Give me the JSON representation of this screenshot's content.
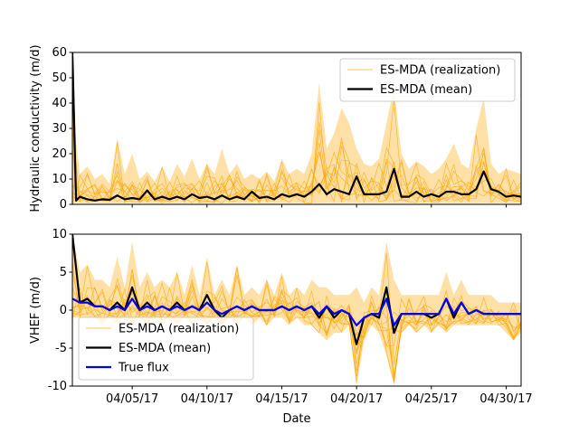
{
  "chart_data": [
    {
      "type": "line",
      "title": "",
      "xlabel": "",
      "ylabel": "Hydraulic conductivity (m/d)",
      "xlim": [
        "2017-04-01",
        "2017-05-01"
      ],
      "ylim": [
        0,
        60
      ],
      "yticks": [
        0,
        10,
        20,
        30,
        40,
        50,
        60
      ],
      "xticks": [
        "2017-04-05",
        "2017-04-10",
        "2017-04-15",
        "2017-04-20",
        "2017-04-25",
        "2017-04-30"
      ],
      "xtick_labels_visible": false,
      "grid": false,
      "legend": {
        "placement": "upper right",
        "entries": [
          "ES-MDA (realization)",
          "ES-MDA (mean)"
        ]
      },
      "colors": {
        "realization": "#ffa500",
        "mean": "#000000"
      },
      "series": [
        {
          "name": "ES-MDA (realization)",
          "kind": "ensemble band (many thin realizations)",
          "x": [
            "2017-04-01",
            "2017-04-01T06",
            "2017-04-01T12",
            "2017-04-02",
            "2017-04-02T12",
            "2017-04-03",
            "2017-04-03T12",
            "2017-04-04",
            "2017-04-04T12",
            "2017-04-05",
            "2017-04-05T12",
            "2017-04-06",
            "2017-04-06T12",
            "2017-04-07",
            "2017-04-07T12",
            "2017-04-08",
            "2017-04-08T12",
            "2017-04-09",
            "2017-04-09T12",
            "2017-04-10",
            "2017-04-10T12",
            "2017-04-11",
            "2017-04-11T12",
            "2017-04-12",
            "2017-04-12T12",
            "2017-04-13",
            "2017-04-13T12",
            "2017-04-14",
            "2017-04-14T12",
            "2017-04-15",
            "2017-04-15T12",
            "2017-04-16",
            "2017-04-16T12",
            "2017-04-17",
            "2017-04-17T12",
            "2017-04-18",
            "2017-04-18T12",
            "2017-04-19",
            "2017-04-19T12",
            "2017-04-20",
            "2017-04-20T12",
            "2017-04-21",
            "2017-04-21T12",
            "2017-04-22",
            "2017-04-22T12",
            "2017-04-23",
            "2017-04-23T12",
            "2017-04-24",
            "2017-04-24T12",
            "2017-04-25",
            "2017-04-25T12",
            "2017-04-26",
            "2017-04-26T12",
            "2017-04-27",
            "2017-04-27T12",
            "2017-04-28",
            "2017-04-28T12",
            "2017-04-29",
            "2017-04-29T12",
            "2017-04-30",
            "2017-04-30T12",
            "2017-05-01"
          ],
          "upper": [
            60,
            25,
            12,
            15,
            10,
            12,
            8,
            26,
            12,
            20,
            10,
            13,
            9,
            15,
            9,
            16,
            11,
            18,
            10,
            16,
            12,
            22,
            12,
            16,
            10,
            12,
            10,
            13,
            9,
            18,
            12,
            14,
            12,
            20,
            48,
            22,
            28,
            38,
            32,
            22,
            16,
            15,
            18,
            32,
            46,
            20,
            14,
            17,
            15,
            12,
            14,
            18,
            24,
            16,
            14,
            30,
            42,
            16,
            12,
            14,
            13,
            12
          ],
          "lower": [
            0,
            0.5,
            0.5,
            0.5,
            0.5,
            0.5,
            0.5,
            0.5,
            0.5,
            0.5,
            0.5,
            0.5,
            0.5,
            0.5,
            0.5,
            0.5,
            0.5,
            0.5,
            0.5,
            0.5,
            0.5,
            0.5,
            0.5,
            0.5,
            0.5,
            0.5,
            0.5,
            0.5,
            0.5,
            0.5,
            0.5,
            0.5,
            0.5,
            0.5,
            0.5,
            0.5,
            0.5,
            0.5,
            0.5,
            0.5,
            0.5,
            0.5,
            0.5,
            0.5,
            0.5,
            0.5,
            0.5,
            0.5,
            0.5,
            0.5,
            0.5,
            0.5,
            0.5,
            0.5,
            0.5,
            0.5,
            0.5,
            0.5,
            0.5,
            0.5,
            0.5,
            0.5
          ]
        },
        {
          "name": "ES-MDA (mean)",
          "x": [
            "2017-04-01",
            "2017-04-01T06",
            "2017-04-01T12",
            "2017-04-02",
            "2017-04-02T12",
            "2017-04-03",
            "2017-04-03T12",
            "2017-04-04",
            "2017-04-04T12",
            "2017-04-05",
            "2017-04-05T12",
            "2017-04-06",
            "2017-04-06T12",
            "2017-04-07",
            "2017-04-07T12",
            "2017-04-08",
            "2017-04-08T12",
            "2017-04-09",
            "2017-04-09T12",
            "2017-04-10",
            "2017-04-10T12",
            "2017-04-11",
            "2017-04-11T12",
            "2017-04-12",
            "2017-04-12T12",
            "2017-04-13",
            "2017-04-13T12",
            "2017-04-14",
            "2017-04-14T12",
            "2017-04-15",
            "2017-04-15T12",
            "2017-04-16",
            "2017-04-16T12",
            "2017-04-17",
            "2017-04-17T12",
            "2017-04-18",
            "2017-04-18T12",
            "2017-04-19",
            "2017-04-19T12",
            "2017-04-20",
            "2017-04-20T12",
            "2017-04-21",
            "2017-04-21T12",
            "2017-04-22",
            "2017-04-22T12",
            "2017-04-23",
            "2017-04-23T12",
            "2017-04-24",
            "2017-04-24T12",
            "2017-04-25",
            "2017-04-25T12",
            "2017-04-26",
            "2017-04-26T12",
            "2017-04-27",
            "2017-04-27T12",
            "2017-04-28",
            "2017-04-28T12",
            "2017-04-29",
            "2017-04-29T12",
            "2017-04-30",
            "2017-04-30T12",
            "2017-05-01"
          ],
          "values": [
            60,
            1.5,
            3,
            2,
            1.5,
            2,
            1.8,
            3.5,
            2,
            2.5,
            2,
            5.5,
            2,
            3,
            2,
            3,
            2,
            4,
            2.5,
            3,
            2,
            3.5,
            2,
            3,
            2,
            5,
            2.5,
            3,
            2,
            4,
            3,
            4,
            3,
            5,
            8,
            4,
            6,
            5,
            4,
            11,
            4,
            4,
            4,
            5,
            14,
            3,
            3,
            5,
            3,
            4,
            3,
            5,
            5,
            4,
            4,
            6,
            13,
            6,
            5,
            3,
            3.5,
            3
          ]
        }
      ]
    },
    {
      "type": "line",
      "title": "",
      "xlabel": "Date",
      "ylabel": "VHEF (m/d)",
      "xlim": [
        "2017-04-01",
        "2017-05-01"
      ],
      "ylim": [
        -10,
        10
      ],
      "yticks": [
        -10,
        -5,
        0,
        5,
        10
      ],
      "xticks": [
        "2017-04-05",
        "2017-04-10",
        "2017-04-15",
        "2017-04-20",
        "2017-04-25",
        "2017-04-30"
      ],
      "xtick_labels": [
        "04/05/17",
        "04/10/17",
        "04/15/17",
        "04/20/17",
        "04/25/17",
        "04/30/17"
      ],
      "grid": false,
      "legend": {
        "placement": "lower left",
        "entries": [
          "ES-MDA (realization)",
          "ES-MDA (mean)",
          "True flux"
        ]
      },
      "colors": {
        "realization": "#ffa500",
        "mean": "#000000",
        "true": "#0000ff"
      },
      "series": [
        {
          "name": "ES-MDA (realization)",
          "kind": "ensemble band (many thin realizations)",
          "x": [
            "2017-04-01",
            "2017-04-01T12",
            "2017-04-02",
            "2017-04-02T12",
            "2017-04-03",
            "2017-04-03T12",
            "2017-04-04",
            "2017-04-04T12",
            "2017-04-05",
            "2017-04-05T12",
            "2017-04-06",
            "2017-04-06T12",
            "2017-04-07",
            "2017-04-07T12",
            "2017-04-08",
            "2017-04-08T12",
            "2017-04-09",
            "2017-04-09T12",
            "2017-04-10",
            "2017-04-10T12",
            "2017-04-11",
            "2017-04-11T12",
            "2017-04-12",
            "2017-04-12T12",
            "2017-04-13",
            "2017-04-13T12",
            "2017-04-14",
            "2017-04-14T12",
            "2017-04-15",
            "2017-04-15T12",
            "2017-04-16",
            "2017-04-16T12",
            "2017-04-17",
            "2017-04-17T12",
            "2017-04-18",
            "2017-04-18T12",
            "2017-04-19",
            "2017-04-19T12",
            "2017-04-20",
            "2017-04-20T12",
            "2017-04-21",
            "2017-04-21T12",
            "2017-04-22",
            "2017-04-22T12",
            "2017-04-23",
            "2017-04-23T12",
            "2017-04-24",
            "2017-04-24T12",
            "2017-04-25",
            "2017-04-25T12",
            "2017-04-26",
            "2017-04-26T12",
            "2017-04-27",
            "2017-04-27T12",
            "2017-04-28",
            "2017-04-28T12",
            "2017-04-29",
            "2017-04-29T12",
            "2017-04-30",
            "2017-04-30T12",
            "2017-05-01"
          ],
          "upper": [
            10,
            5,
            6,
            4,
            4,
            3,
            7,
            3,
            9,
            3,
            5,
            3,
            4,
            3,
            5,
            2,
            6,
            2,
            7,
            2,
            4,
            2,
            6,
            2,
            3,
            2,
            4,
            2,
            5,
            2,
            3,
            2,
            4,
            3,
            3,
            2,
            2,
            2,
            3,
            1,
            3,
            2,
            9,
            4,
            2,
            2,
            2,
            2,
            2,
            2,
            5,
            2,
            4,
            2,
            2,
            2,
            2,
            1,
            1,
            1,
            1
          ],
          "lower": [
            -1,
            -1,
            -1,
            -1,
            -2,
            -1,
            -2,
            -1,
            -2,
            -1,
            -2,
            -1,
            -2,
            -1,
            -2,
            -1,
            -2,
            -1,
            -2,
            -1,
            -2,
            -1,
            -2,
            -1,
            -2,
            -1,
            -2,
            -1,
            -1,
            -2,
            -1,
            -2,
            -2,
            -3,
            -4,
            -3,
            -3,
            -2,
            -10,
            -4,
            -2,
            -3,
            -6,
            -10,
            -3,
            -2,
            -3,
            -2,
            -3,
            -2,
            -3,
            -2,
            -2,
            -2,
            -2,
            -2,
            -2,
            -2,
            -3,
            -4,
            -3
          ]
        },
        {
          "name": "ES-MDA (mean)",
          "x": [
            "2017-04-01",
            "2017-04-01T12",
            "2017-04-02",
            "2017-04-02T12",
            "2017-04-03",
            "2017-04-03T12",
            "2017-04-04",
            "2017-04-04T12",
            "2017-04-05",
            "2017-04-05T12",
            "2017-04-06",
            "2017-04-06T12",
            "2017-04-07",
            "2017-04-07T12",
            "2017-04-08",
            "2017-04-08T12",
            "2017-04-09",
            "2017-04-09T12",
            "2017-04-10",
            "2017-04-10T12",
            "2017-04-11",
            "2017-04-11T12",
            "2017-04-12",
            "2017-04-12T12",
            "2017-04-13",
            "2017-04-13T12",
            "2017-04-14",
            "2017-04-14T12",
            "2017-04-15",
            "2017-04-15T12",
            "2017-04-16",
            "2017-04-16T12",
            "2017-04-17",
            "2017-04-17T12",
            "2017-04-18",
            "2017-04-18T12",
            "2017-04-19",
            "2017-04-19T12",
            "2017-04-20",
            "2017-04-20T12",
            "2017-04-21",
            "2017-04-21T12",
            "2017-04-22",
            "2017-04-22T12",
            "2017-04-23",
            "2017-04-23T12",
            "2017-04-24",
            "2017-04-24T12",
            "2017-04-25",
            "2017-04-25T12",
            "2017-04-26",
            "2017-04-26T12",
            "2017-04-27",
            "2017-04-27T12",
            "2017-04-28",
            "2017-04-28T12",
            "2017-04-29",
            "2017-04-29T12",
            "2017-04-30",
            "2017-04-30T12",
            "2017-05-01"
          ],
          "values": [
            10,
            1,
            1.5,
            0.5,
            0.5,
            0,
            1,
            0,
            3,
            0,
            1,
            0,
            0.5,
            0,
            1,
            0,
            0.5,
            0,
            2,
            0,
            -1,
            0,
            0.5,
            0,
            0.5,
            0,
            0,
            0,
            0.5,
            0,
            0.5,
            0,
            0.5,
            -1,
            0.5,
            -1,
            0,
            -0.5,
            -4.5,
            -1,
            -0.5,
            -1,
            3,
            -3,
            -0.5,
            -0.5,
            -0.5,
            -0.5,
            -1,
            -0.5,
            1.5,
            -1,
            1,
            -0.5,
            0,
            -0.5,
            -0.5,
            -0.5,
            -0.5,
            -0.5,
            -0.5
          ]
        },
        {
          "name": "True flux",
          "x": [
            "2017-04-01",
            "2017-04-01T12",
            "2017-04-02",
            "2017-04-02T12",
            "2017-04-03",
            "2017-04-03T12",
            "2017-04-04",
            "2017-04-04T12",
            "2017-04-05",
            "2017-04-05T12",
            "2017-04-06",
            "2017-04-06T12",
            "2017-04-07",
            "2017-04-07T12",
            "2017-04-08",
            "2017-04-08T12",
            "2017-04-09",
            "2017-04-09T12",
            "2017-04-10",
            "2017-04-10T12",
            "2017-04-11",
            "2017-04-11T12",
            "2017-04-12",
            "2017-04-12T12",
            "2017-04-13",
            "2017-04-13T12",
            "2017-04-14",
            "2017-04-14T12",
            "2017-04-15",
            "2017-04-15T12",
            "2017-04-16",
            "2017-04-16T12",
            "2017-04-17",
            "2017-04-17T12",
            "2017-04-18",
            "2017-04-18T12",
            "2017-04-19",
            "2017-04-19T12",
            "2017-04-20",
            "2017-04-20T12",
            "2017-04-21",
            "2017-04-21T12",
            "2017-04-22",
            "2017-04-22T12",
            "2017-04-23",
            "2017-04-23T12",
            "2017-04-24",
            "2017-04-24T12",
            "2017-04-25",
            "2017-04-25T12",
            "2017-04-26",
            "2017-04-26T12",
            "2017-04-27",
            "2017-04-27T12",
            "2017-04-28",
            "2017-04-28T12",
            "2017-04-29",
            "2017-04-29T12",
            "2017-04-30",
            "2017-04-30T12",
            "2017-05-01"
          ],
          "values": [
            1.5,
            1,
            1,
            0.5,
            0.5,
            0,
            0.5,
            0,
            1.5,
            0,
            0.5,
            0,
            0.5,
            0,
            0.5,
            0,
            0.5,
            0,
            1,
            0,
            -0.5,
            0,
            0.5,
            0,
            0.5,
            0,
            0,
            0,
            0.5,
            0,
            0.5,
            0,
            0.5,
            -0.5,
            0.5,
            -0.5,
            0,
            -0.5,
            -2,
            -1,
            -0.5,
            -0.5,
            1.5,
            -2,
            -0.5,
            -0.5,
            -0.5,
            -0.5,
            -0.5,
            -0.5,
            1.5,
            -0.5,
            1,
            -0.5,
            0,
            -0.5,
            -0.5,
            -0.5,
            -0.5,
            -0.5,
            -0.5
          ]
        }
      ]
    }
  ]
}
